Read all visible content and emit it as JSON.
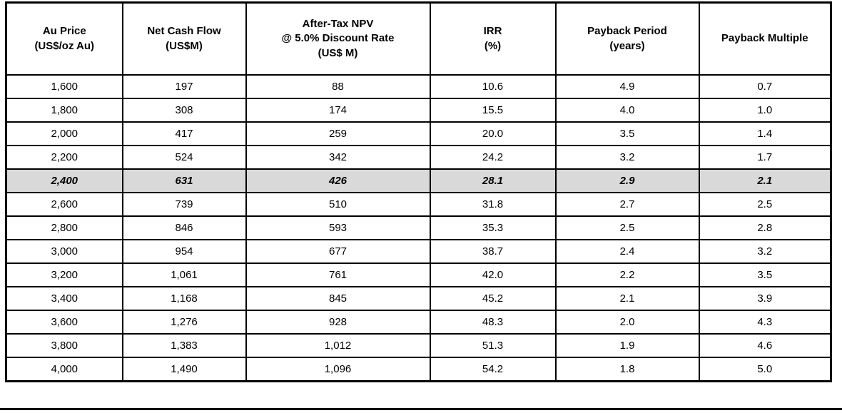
{
  "table": {
    "title_semantic": "gold-price-sensitivity-table",
    "columns": [
      {
        "label": "Au Price\n(US$/oz Au)"
      },
      {
        "label": "Net Cash Flow\n(US$M)"
      },
      {
        "label": "After-Tax NPV\n@ 5.0% Discount Rate\n(US$ M)"
      },
      {
        "label": "IRR\n(%)"
      },
      {
        "label": "Payback Period\n(years)"
      },
      {
        "label": "Payback Multiple"
      }
    ],
    "rows": [
      [
        "1,600",
        "197",
        "88",
        "10.6",
        "4.9",
        "0.7"
      ],
      [
        "1,800",
        "308",
        "174",
        "15.5",
        "4.0",
        "1.0"
      ],
      [
        "2,000",
        "417",
        "259",
        "20.0",
        "3.5",
        "1.4"
      ],
      [
        "2,200",
        "524",
        "342",
        "24.2",
        "3.2",
        "1.7"
      ],
      [
        "2,400",
        "631",
        "426",
        "28.1",
        "2.9",
        "2.1"
      ],
      [
        "2,600",
        "739",
        "510",
        "31.8",
        "2.7",
        "2.5"
      ],
      [
        "2,800",
        "846",
        "593",
        "35.3",
        "2.5",
        "2.8"
      ],
      [
        "3,000",
        "954",
        "677",
        "38.7",
        "2.4",
        "3.2"
      ],
      [
        "3,200",
        "1,061",
        "761",
        "42.0",
        "2.2",
        "3.5"
      ],
      [
        "3,400",
        "1,168",
        "845",
        "45.2",
        "2.1",
        "3.9"
      ],
      [
        "3,600",
        "1,276",
        "928",
        "48.3",
        "2.0",
        "4.3"
      ],
      [
        "3,800",
        "1,383",
        "1,012",
        "51.3",
        "1.9",
        "4.6"
      ],
      [
        "4,000",
        "1,490",
        "1,096",
        "54.2",
        "1.8",
        "5.0"
      ]
    ],
    "highlighted_row_index": 4,
    "highlight_color": "#d9d9d9",
    "border_color": "#000000"
  }
}
